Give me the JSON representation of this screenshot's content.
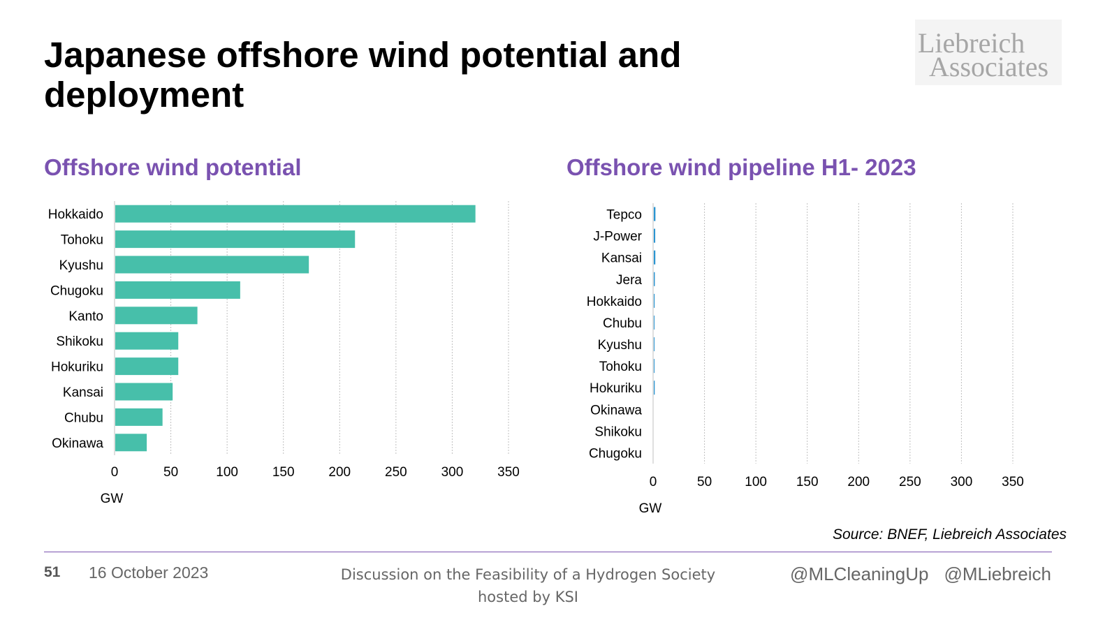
{
  "slide": {
    "title": "Japanese offshore wind potential and deployment",
    "logo_line1": "Liebreich",
    "logo_line2": "Associates",
    "source": "Source: BNEF, Liebreich Associates",
    "page_number": "51",
    "date": "16 October 2023",
    "footer_line1": "Discussion on the Feasibility of a Hydrogen Society",
    "footer_line2": "hosted by KSI",
    "handle1": "@MLCleaningUp",
    "handle2": "@MLiebreich",
    "accent_color": "#7a52b0"
  },
  "chart_data": [
    {
      "type": "bar",
      "orientation": "horizontal",
      "title": "Offshore wind potential",
      "xlabel": "GW",
      "categories": [
        "Hokkaido",
        "Tohoku",
        "Kyushu",
        "Chugoku",
        "Kanto",
        "Shikoku",
        "Hokuriku",
        "Kansai",
        "Chubu",
        "Okinawa"
      ],
      "values": [
        320,
        213,
        172,
        111,
        73,
        56,
        56,
        51,
        42,
        28
      ],
      "xlim": [
        0,
        350
      ],
      "xticks": [
        0,
        50,
        100,
        150,
        200,
        250,
        300,
        350
      ],
      "grid": true,
      "color": "#47bfaa"
    },
    {
      "type": "bar",
      "orientation": "horizontal",
      "title": "Offshore wind pipeline H1- 2023",
      "xlabel": "GW",
      "categories": [
        "Tepco",
        "J-Power",
        "Kansai",
        "Jera",
        "Hokkaido",
        "Chubu",
        "Kyushu",
        "Tohoku",
        "Hokuriku",
        "Okinawa",
        "Shikoku",
        "Chugoku"
      ],
      "values": [
        1.6,
        1.4,
        1.5,
        1.0,
        0.8,
        0.7,
        0.7,
        0.7,
        0.9,
        0,
        0,
        0
      ],
      "xlim": [
        0,
        350
      ],
      "xticks": [
        0,
        50,
        100,
        150,
        200,
        250,
        300,
        350
      ],
      "grid": true,
      "color": "#2b95d1"
    }
  ]
}
